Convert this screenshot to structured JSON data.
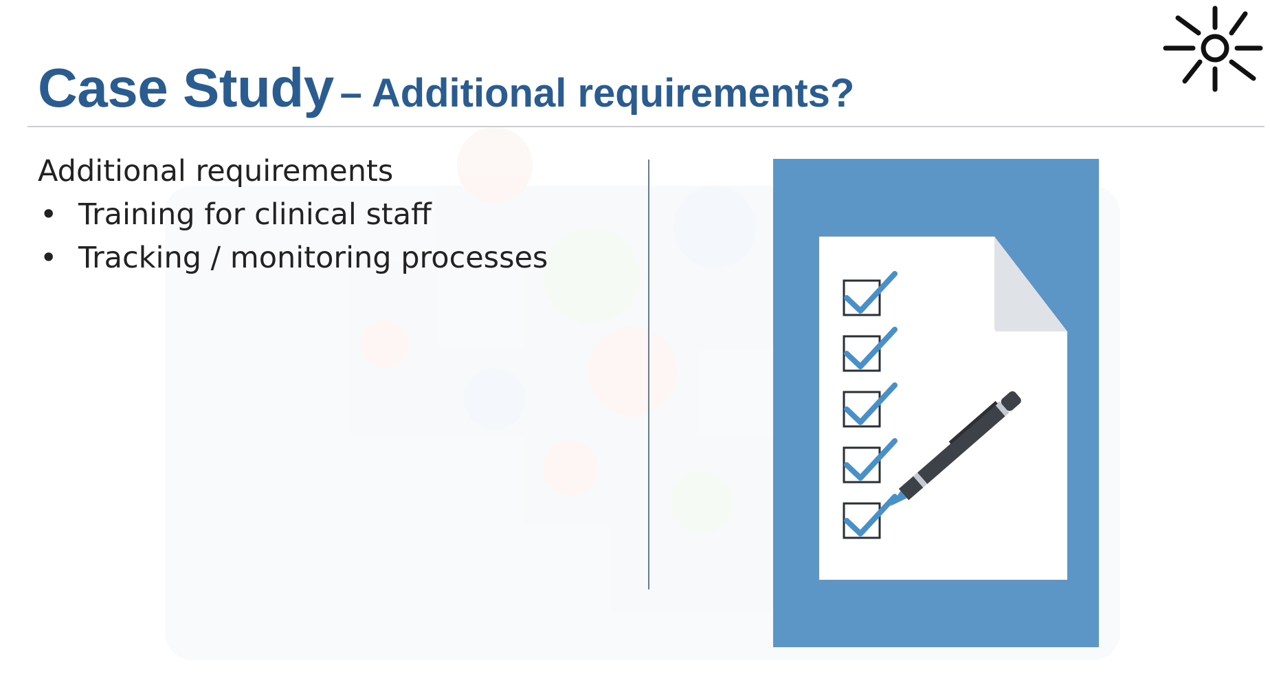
{
  "slide": {
    "title_main": "Case Study",
    "title_sub": "– Additional requirements?",
    "heading": "Additional requirements",
    "bullets": [
      "Training for clinical staff",
      "Tracking / monitoring processes"
    ]
  },
  "colors": {
    "title": "#2b5c8f",
    "illustration_bg": "#5b96c6",
    "checkmark": "#4a90c8",
    "pen": "#3d4248"
  },
  "icons": {
    "logo": "sun-icon",
    "illustration": "checklist-with-pen-icon"
  }
}
